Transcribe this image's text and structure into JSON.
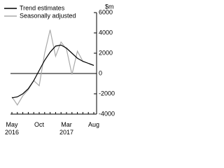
{
  "chart_data": {
    "type": "line",
    "y_unit": "$m",
    "categories": [
      "May\n2016",
      null,
      null,
      null,
      null,
      "Oct",
      null,
      null,
      null,
      null,
      "Mar\n2017",
      null,
      null,
      null,
      null,
      "Aug"
    ],
    "series": [
      {
        "name": "Trend estimates",
        "color": "#000000",
        "values": [
          -2400,
          -2300,
          -2000,
          -1500,
          -700,
          300,
          1300,
          2100,
          2700,
          2800,
          2500,
          2000,
          1500,
          1200,
          1000,
          800
        ]
      },
      {
        "name": "Seasonally adjusted",
        "color": "#aaaaaa",
        "values": [
          -2300,
          -3100,
          -2200,
          -1600,
          -700,
          -1200,
          2000,
          4300,
          1700,
          3100,
          2400,
          -100,
          2200,
          1200,
          1000,
          800
        ]
      }
    ],
    "ylim": [
      -4000,
      6000
    ],
    "yticks": [
      -4000,
      -2000,
      0,
      2000,
      4000,
      6000
    ]
  }
}
